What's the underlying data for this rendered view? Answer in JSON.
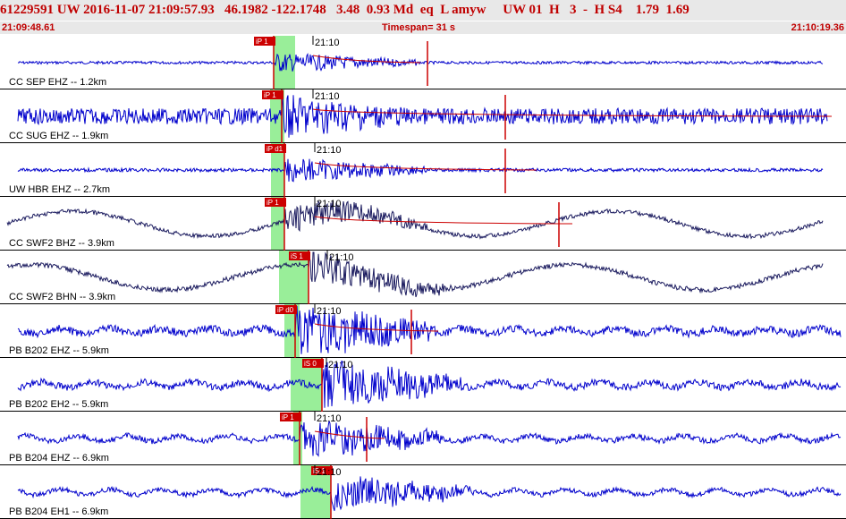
{
  "header": {
    "event_id": "61229591",
    "network": "UW",
    "datetime": "2016-11-07 21:09:57.93",
    "latitude": "46.1982",
    "longitude": "-122.1748",
    "depth": "3.48",
    "magnitude": "0.93",
    "mag_type": "Md",
    "event_type": "eq",
    "location_flag": "L",
    "author": "amyw",
    "origin_net": "UW",
    "origin_version": "01",
    "quality_h": "H",
    "count": "3",
    "dash": "-",
    "quality_code": "H S4",
    "value_1": "1.79",
    "value_2": "1.69"
  },
  "subheader": {
    "start_time": "21:09:48.61",
    "timespan": "Timespan=  31 s",
    "end_time": "21:10:19.36"
  },
  "panels": [
    {
      "label": "CC SEP EHZ -- 1.2km",
      "time_tick": "21:10",
      "pick": "iP 1",
      "color": "#0000cc"
    },
    {
      "label": "CC SUG EHZ -- 1.9km",
      "time_tick": "21:10",
      "pick": "iP 1",
      "color": "#0000cc"
    },
    {
      "label": "UW HBR EHZ -- 2.7km",
      "time_tick": "21:10",
      "pick": "iP d1",
      "color": "#0000cc"
    },
    {
      "label": "CC SWF2 BHZ -- 3.9km",
      "time_tick": "21:10",
      "pick": "iP 1",
      "color": "#1a1a5e"
    },
    {
      "label": "CC SWF2 BHN -- 3.9km",
      "time_tick": "21:10",
      "pick": "iS 1",
      "color": "#1a1a5e"
    },
    {
      "label": "PB B202 EHZ -- 5.9km",
      "time_tick": "21:10",
      "pick": "iP d0",
      "color": "#0000cc"
    },
    {
      "label": "PB B202 EH2 -- 5.9km",
      "time_tick": "21:10",
      "pick": "iS 0",
      "color": "#0000cc"
    },
    {
      "label": "PB B204 EHZ -- 6.9km",
      "time_tick": "21:10",
      "pick": "iP 1",
      "color": "#0000cc"
    },
    {
      "label": "PB B204 EH1 -- 6.9km",
      "time_tick": "21:10",
      "pick": "iS 1",
      "color": "#0000cc"
    }
  ],
  "colors": {
    "pick_marker": "#cc0000",
    "theoretical_band": "#99ee99",
    "header_text": "#c00000",
    "header_bg": "#e8e8e8"
  }
}
